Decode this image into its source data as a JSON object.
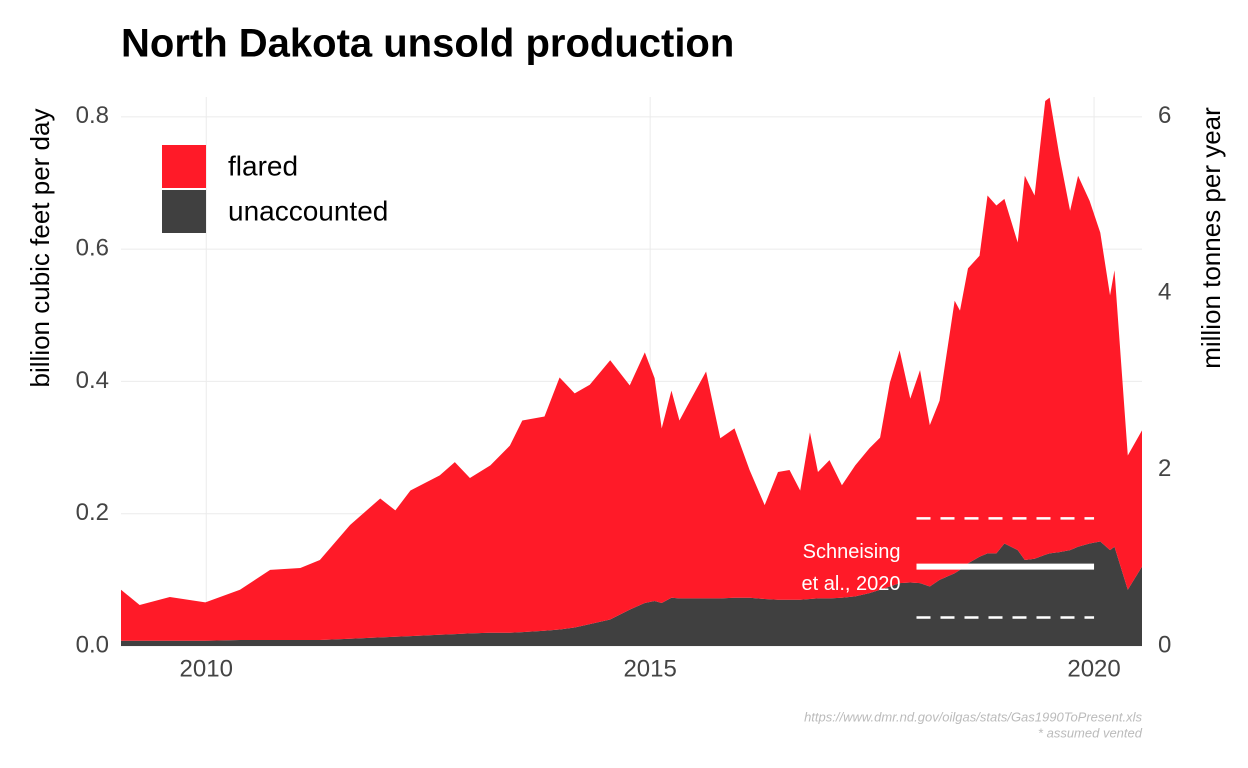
{
  "chart_data": {
    "type": "stacked_area",
    "title": "North Dakota unsold production",
    "y_label": "billion cubic feet per day",
    "y2_label": "million tonnes per year",
    "source": "https://www.dmr.nd.gov/oilgas/stats/Gas1990ToPresent.xls",
    "footnote": "* assumed vented",
    "x": [
      2009.04,
      2009.25,
      2009.59,
      2009.99,
      2010.38,
      2010.72,
      2011.06,
      2011.28,
      2011.62,
      2011.96,
      2012.13,
      2012.3,
      2012.63,
      2012.8,
      2012.97,
      2013.2,
      2013.42,
      2013.56,
      2013.81,
      2013.98,
      2014.15,
      2014.32,
      2014.55,
      2014.77,
      2014.94,
      2015.05,
      2015.13,
      2015.24,
      2015.33,
      2015.45,
      2015.63,
      2015.79,
      2015.95,
      2016.12,
      2016.29,
      2016.44,
      2016.57,
      2016.69,
      2016.8,
      2016.89,
      2017.02,
      2017.16,
      2017.31,
      2017.47,
      2017.59,
      2017.7,
      2017.81,
      2017.93,
      2018.04,
      2018.15,
      2018.26,
      2018.43,
      2018.49,
      2018.58,
      2018.71,
      2018.8,
      2018.9,
      2018.99,
      2019.14,
      2019.22,
      2019.33,
      2019.45,
      2019.5,
      2019.61,
      2019.73,
      2019.82,
      2019.95,
      2020.07,
      2020.18,
      2020.23,
      2020.38,
      2020.54
    ],
    "series": [
      {
        "name": "unaccounted",
        "color": "#404040",
        "values": [
          0.008,
          0.008,
          0.008,
          0.008,
          0.009,
          0.009,
          0.009,
          0.009,
          0.011,
          0.013,
          0.014,
          0.015,
          0.017,
          0.018,
          0.019,
          0.02,
          0.02,
          0.021,
          0.023,
          0.025,
          0.028,
          0.033,
          0.04,
          0.055,
          0.065,
          0.068,
          0.065,
          0.073,
          0.072,
          0.072,
          0.072,
          0.072,
          0.073,
          0.073,
          0.071,
          0.07,
          0.07,
          0.07,
          0.071,
          0.072,
          0.072,
          0.073,
          0.075,
          0.08,
          0.085,
          0.09,
          0.095,
          0.096,
          0.095,
          0.09,
          0.1,
          0.11,
          0.115,
          0.125,
          0.135,
          0.14,
          0.14,
          0.155,
          0.145,
          0.13,
          0.132,
          0.138,
          0.14,
          0.142,
          0.145,
          0.15,
          0.155,
          0.158,
          0.145,
          0.15,
          0.085,
          0.12
        ]
      },
      {
        "name": "flared",
        "color": "#ff1a28",
        "values": [
          0.077,
          0.054,
          0.066,
          0.058,
          0.076,
          0.106,
          0.109,
          0.121,
          0.172,
          0.21,
          0.191,
          0.22,
          0.241,
          0.26,
          0.235,
          0.253,
          0.283,
          0.32,
          0.324,
          0.381,
          0.354,
          0.362,
          0.392,
          0.339,
          0.379,
          0.337,
          0.264,
          0.313,
          0.269,
          0.299,
          0.343,
          0.242,
          0.256,
          0.193,
          0.142,
          0.193,
          0.196,
          0.165,
          0.252,
          0.191,
          0.209,
          0.17,
          0.198,
          0.219,
          0.23,
          0.308,
          0.352,
          0.278,
          0.322,
          0.244,
          0.271,
          0.412,
          0.392,
          0.446,
          0.455,
          0.541,
          0.526,
          0.521,
          0.465,
          0.581,
          0.549,
          0.686,
          0.689,
          0.599,
          0.513,
          0.561,
          0.518,
          0.467,
          0.385,
          0.418,
          0.203,
          0.206
        ]
      }
    ],
    "xlim": [
      2009.04,
      2020.54
    ],
    "xticks": [
      2010,
      2015,
      2020
    ],
    "ylim": [
      0,
      0.83
    ],
    "yticks": [
      {
        "value": 0,
        "label": "0.0"
      },
      0.2,
      0.4,
      0.6,
      0.8
    ],
    "y2lim": [
      0,
      6.225
    ],
    "y2ticks": [
      0,
      2,
      4,
      6
    ],
    "grid": true,
    "legend": "top-left",
    "annotation": {
      "text": [
        "Schneising",
        "et al., 2020"
      ],
      "x": [
        2018.0,
        2020.0
      ],
      "value": 0.12,
      "low": 0.043,
      "high": 0.193,
      "color": "#ffffff"
    }
  }
}
